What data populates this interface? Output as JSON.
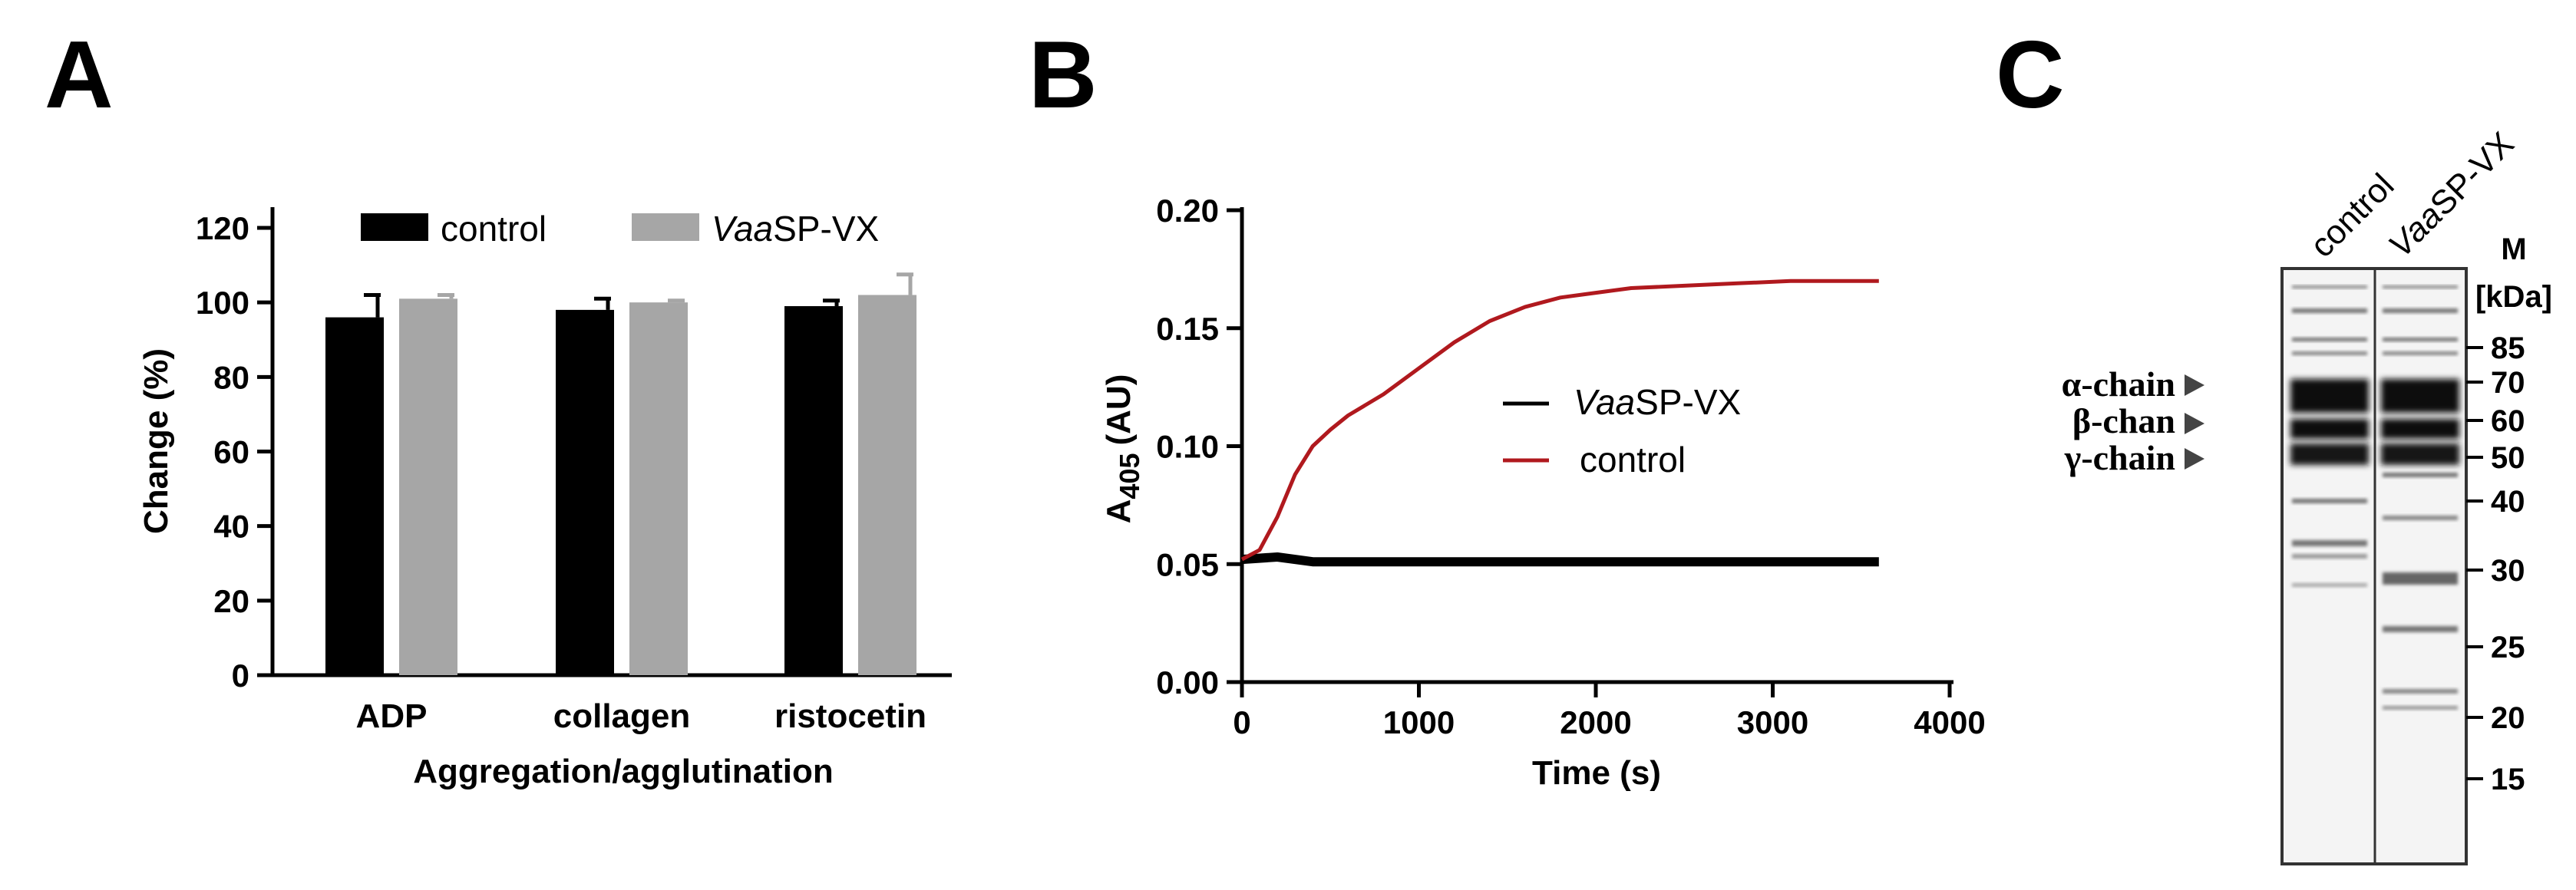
{
  "panel_labels": {
    "a": "A",
    "b": "B",
    "c": "C"
  },
  "colors": {
    "control": "#000000",
    "vaasp": "#a6a6a6",
    "red": "#b0191e",
    "black": "#000000"
  },
  "chart_data": [
    {
      "panel": "A",
      "type": "bar",
      "title": "",
      "ylabel": "Change (%)",
      "xlabel": "Aggregation/agglutination",
      "ylim": [
        0,
        120
      ],
      "yticks": [
        0,
        20,
        40,
        60,
        80,
        100,
        120
      ],
      "categories": [
        "ADP",
        "collagen",
        "ristocetin"
      ],
      "legend": {
        "position": "top",
        "prefix_italic": "Vaa",
        "suffix": "SP-VX"
      },
      "series": [
        {
          "name": "control",
          "values": [
            96,
            98,
            99
          ],
          "errors": [
            6,
            3,
            1.5
          ]
        },
        {
          "name": "VaaSP-VX",
          "values": [
            101,
            100,
            102
          ],
          "errors": [
            1,
            0.5,
            5.5
          ]
        }
      ]
    },
    {
      "panel": "B",
      "type": "line",
      "ylabel_main": "A",
      "ylabel_sub": "405",
      "ylabel_unit": "(AU)",
      "xlabel": "Time (s)",
      "xlim": [
        0,
        4000
      ],
      "ylim": [
        0,
        0.2
      ],
      "xticks": [
        "0",
        "1000",
        "2000",
        "3000",
        "4000"
      ],
      "yticks": [
        "0.00",
        "0.05",
        "0.10",
        "0.15",
        "0.20"
      ],
      "legend": {
        "position": "center-right",
        "vaasp_italic": "Vaa",
        "vaasp_suffix": "SP-VX",
        "control": "control"
      },
      "series": [
        {
          "name": "VaaSP-VX",
          "x": [
            0,
            200,
            400,
            800,
            1200,
            1600,
            2000,
            2400,
            2800,
            3200,
            3600
          ],
          "y": [
            0.052,
            0.053,
            0.051,
            0.051,
            0.051,
            0.051,
            0.051,
            0.051,
            0.051,
            0.051,
            0.051
          ]
        },
        {
          "name": "control",
          "x": [
            0,
            100,
            200,
            300,
            400,
            500,
            600,
            800,
            1000,
            1200,
            1400,
            1600,
            1800,
            2000,
            2200,
            2500,
            2800,
            3100,
            3400,
            3600
          ],
          "y": [
            0.052,
            0.056,
            0.07,
            0.088,
            0.1,
            0.107,
            0.113,
            0.122,
            0.133,
            0.144,
            0.153,
            0.159,
            0.163,
            0.165,
            0.167,
            0.168,
            0.169,
            0.17,
            0.17,
            0.17
          ]
        }
      ]
    }
  ],
  "gel": {
    "lane_labels": {
      "control": "control",
      "vaasp_italic": "Vaa",
      "vaasp_suffix": "SP-VX"
    },
    "marker_header_1": "M",
    "marker_header_2": "[kDa]",
    "markers": [
      "85",
      "70",
      "60",
      "50",
      "40",
      "30",
      "25",
      "20",
      "15"
    ],
    "chains": [
      {
        "greek": "α",
        "label": "-chain"
      },
      {
        "greek": "β",
        "label": "-chan"
      },
      {
        "greek": "γ",
        "label": "-chain"
      }
    ]
  }
}
